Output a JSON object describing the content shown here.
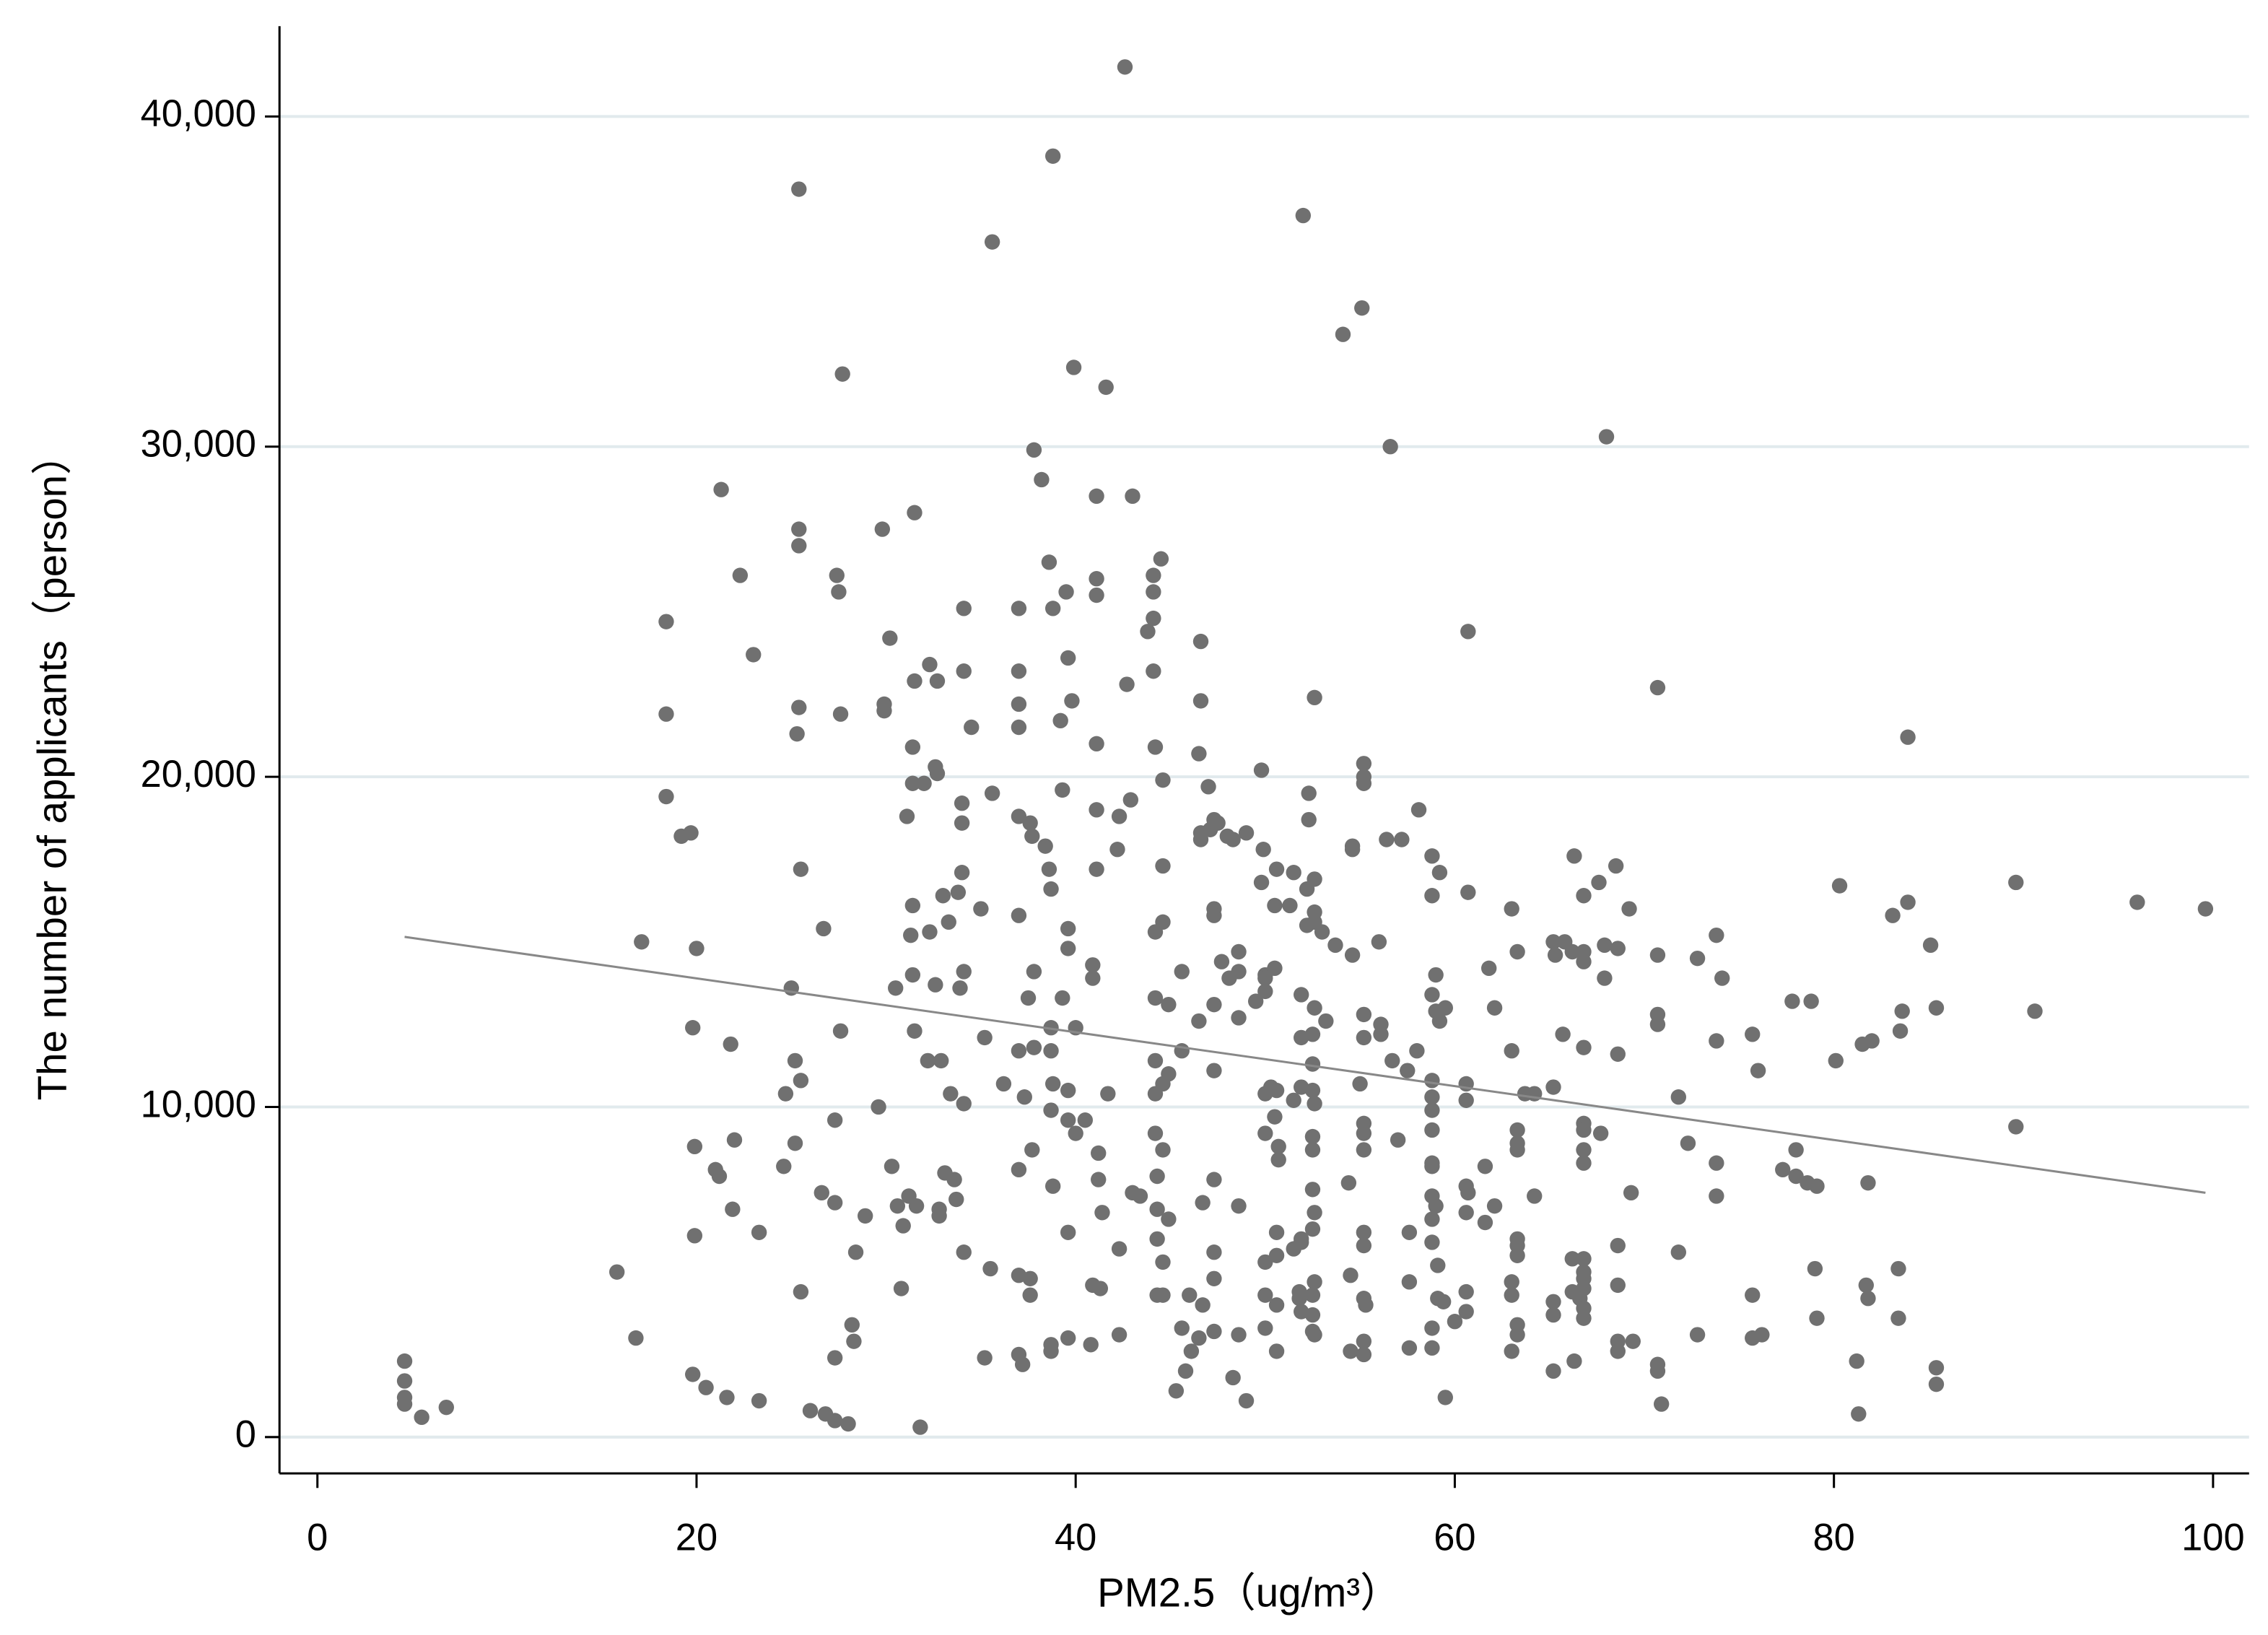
{
  "chart_data": {
    "type": "scatter",
    "x_label": "PM2.5（ug/m³）",
    "y_label": "The number of applicants（person）",
    "xlim": [
      -2.0,
      101.9
    ],
    "ylim": [
      -1100,
      42735
    ],
    "xticks": [
      0,
      20,
      40,
      60,
      80,
      100
    ],
    "yticks": [
      0,
      {
        "value": 10000,
        "label": "10,000"
      },
      {
        "value": 20000,
        "label": "20,000"
      },
      {
        "value": 30000,
        "label": "30,000"
      },
      {
        "value": 40000,
        "label": "40,000"
      }
    ],
    "grid": true,
    "color": "#707070",
    "x": [
      4.6,
      4.6,
      4.6,
      4.6,
      5.5,
      6.8,
      15.8,
      16.8,
      17.1,
      18.4,
      18.4,
      18.4,
      19.2,
      19.7,
      19.8,
      20,
      19.9,
      19.9,
      19.8,
      20.5,
      21,
      21.2,
      21.3,
      21.6,
      21.8,
      21.9,
      22,
      22.3,
      23,
      23.3,
      23.3,
      24.6,
      24.7,
      25,
      25.2,
      25.2,
      25.3,
      25.4,
      25.4,
      25.4,
      25.4,
      25.5,
      25.5,
      25.5,
      26,
      26.6,
      26.7,
      26.8,
      27.3,
      27.3,
      27.3,
      27.3,
      27.4,
      27.5,
      27.6,
      27.6,
      27.7,
      28,
      28.2,
      28.3,
      28.4,
      28.9,
      29.6,
      29.8,
      29.9,
      29.9,
      30.2,
      30.3,
      30.5,
      30.6,
      30.8,
      30.9,
      31.1,
      31.2,
      31.3,
      31.5,
      31.4,
      31.4,
      31.4,
      31.4,
      31.5,
      31.5,
      31.6,
      31.8,
      32,
      32.2,
      32.3,
      32.3,
      32.6,
      32.6,
      32.7,
      32.7,
      32.8,
      32.8,
      32.9,
      33,
      33.1,
      33.3,
      33.4,
      33.6,
      33.7,
      33.8,
      33.9,
      34,
      34.1,
      34.1,
      34,
      34,
      34.1,
      34.1,
      34.1,
      34.5,
      35,
      35.2,
      35.2,
      35.5,
      35.6,
      35.6,
      36.2,
      37,
      37,
      37,
      37,
      37,
      37,
      37,
      37,
      37,
      37,
      37.2,
      37.3,
      37.5,
      37.6,
      37.7,
      37.8,
      37.8,
      37.8,
      37.7,
      37.6,
      37.6,
      38.2,
      38.4,
      38.6,
      38.6,
      38.7,
      38.7,
      38.7,
      38.7,
      38.8,
      38.8,
      38.8,
      38.8,
      38.7,
      38.7,
      39.2,
      39.3,
      39.3,
      39.5,
      39.6,
      39.6,
      39.6,
      39.6,
      39.6,
      39.6,
      39.6,
      39.9,
      39.8,
      40,
      40,
      40.5,
      40.8,
      40.9,
      40.9,
      40.9,
      41.1,
      41.1,
      41.1,
      41.1,
      41.1,
      41.1,
      41.2,
      41.2,
      41.3,
      41.4,
      41.6,
      41.7,
      42.2,
      42.3,
      42.3,
      42.3,
      42.6,
      42.7,
      42.9,
      43,
      43,
      43.4,
      43.8,
      44.1,
      44.1,
      44.1,
      44.1,
      44.2,
      44.2,
      44.2,
      44.2,
      44.2,
      44.2,
      44.3,
      44.3,
      44.3,
      44.3,
      44.5,
      44.6,
      44.6,
      44.6,
      44.6,
      44.6,
      44.6,
      44.6,
      44.9,
      44.9,
      44.9,
      45.3,
      45.6,
      45.6,
      45.6,
      45.8,
      46,
      46.1,
      46.5,
      46.5,
      46.5,
      46.6,
      46.6,
      46.6,
      46.6,
      46.7,
      46.7,
      47,
      47.1,
      47.3,
      47.3,
      47.3,
      47.3,
      47.3,
      47.3,
      47.3,
      47.3,
      47.3,
      47.5,
      47.7,
      48,
      48.1,
      48.3,
      48.6,
      48.6,
      48.6,
      48.6,
      48.6,
      48.3,
      49,
      49,
      49.5,
      49.8,
      49.8,
      49.9,
      50,
      50,
      50,
      50,
      50,
      50,
      50,
      50,
      50.3,
      50.5,
      50.5,
      50.5,
      50.6,
      50.6,
      50.7,
      50.7,
      50.6,
      50.6,
      50.6,
      50.6,
      51.3,
      51.5,
      51.5,
      51.5,
      51.8,
      51.8,
      51.9,
      51.9,
      51.9,
      51.9,
      51.9,
      51.9,
      52,
      52.2,
      52.2,
      52.3,
      52.3,
      52.5,
      52.5,
      52.5,
      52.5,
      52.5,
      52.5,
      52.5,
      52.5,
      52.5,
      52.5,
      52.6,
      52.6,
      52.6,
      52.6,
      52.6,
      52.6,
      52.6,
      52.6,
      52.6,
      53,
      53.2,
      53.7,
      54.1,
      54.4,
      54.5,
      54.5,
      54.6,
      54.6,
      54.6,
      55,
      55.1,
      55.2,
      55.2,
      55.2,
      55.2,
      55.2,
      55.2,
      55.2,
      55.2,
      55.2,
      55.2,
      55.2,
      55.2,
      55.2,
      55.3,
      56,
      56.1,
      56.1,
      56.4,
      56.6,
      56.7,
      57,
      57.2,
      57.5,
      57.6,
      57.6,
      57.6,
      58,
      58.1,
      58.8,
      58.8,
      58.8,
      58.8,
      58.8,
      58.8,
      58.8,
      58.8,
      58.8,
      58.8,
      58.8,
      58.8,
      58.8,
      58.8,
      59,
      59,
      59,
      59.1,
      59.1,
      59.2,
      59.2,
      59.4,
      59.5,
      59.5,
      60,
      60.6,
      60.6,
      60.6,
      60.6,
      60.6,
      60.6,
      60.7,
      60.7,
      60.7,
      61.6,
      61.6,
      61.8,
      62.1,
      62.1,
      63,
      63,
      63,
      63,
      63,
      63.3,
      63.3,
      63.3,
      63.3,
      63.3,
      63.3,
      63.3,
      63.3,
      63.3,
      63.7,
      64.2,
      64.2,
      65.2,
      65.2,
      65.2,
      65.2,
      65.2,
      65.3,
      65.7,
      65.8,
      66.2,
      66.2,
      66.2,
      66.3,
      66.3,
      66.6,
      66.8,
      66.8,
      66.8,
      66.8,
      66.8,
      66.8,
      66.8,
      66.8,
      66.8,
      66.8,
      66.8,
      66.8,
      66.8,
      66.8,
      67.6,
      67.7,
      67.9,
      67.9,
      68,
      68.5,
      68.6,
      68.6,
      68.6,
      68.6,
      68.6,
      68.6,
      69.2,
      69.3,
      69.4,
      70.7,
      70.7,
      70.7,
      70.7,
      70.7,
      70.7,
      70.9,
      71.8,
      71.8,
      72.3,
      72.8,
      72.8,
      73.8,
      73.8,
      73.8,
      73.8,
      74.1,
      75.7,
      75.7,
      75.7,
      76,
      76.2,
      77.3,
      77.8,
      78,
      78,
      78.6,
      78.8,
      79,
      79.1,
      79.1,
      80.1,
      80.3,
      81.2,
      81.3,
      81.5,
      81.7,
      81.8,
      81.8,
      82,
      83.1,
      83.4,
      83.4,
      83.5,
      83.6,
      83.9,
      83.9,
      85.1,
      85.4,
      85.4,
      85.4,
      89.6,
      89.6,
      90.6,
      96,
      99.6
    ],
    "values": [
      2300,
      1700,
      1200,
      1000,
      600,
      900,
      5000,
      3000,
      15000,
      24700,
      21900,
      19400,
      18200,
      18300,
      12400,
      14800,
      8800,
      6100,
      1900,
      1500,
      8100,
      7900,
      28700,
      1200,
      11900,
      6900,
      9000,
      26100,
      23700,
      6200,
      1100,
      8200,
      10400,
      13600,
      8900,
      11400,
      21300,
      22100,
      27500,
      27000,
      37800,
      17200,
      10800,
      4400,
      800,
      7400,
      15400,
      700,
      500,
      2400,
      9600,
      7100,
      26100,
      25600,
      21900,
      12300,
      32200,
      400,
      3400,
      2900,
      5600,
      6700,
      10000,
      27500,
      22200,
      22000,
      24200,
      8200,
      13600,
      7000,
      4500,
      6400,
      18800,
      7300,
      15200,
      28000,
      20900,
      19800,
      16100,
      14000,
      12300,
      22900,
      7000,
      300,
      19800,
      11400,
      15300,
      23400,
      20300,
      13700,
      22900,
      20100,
      6900,
      6700,
      11400,
      16400,
      8000,
      15600,
      10400,
      7800,
      7200,
      16500,
      13600,
      17100,
      23200,
      25100,
      19200,
      18600,
      14100,
      10100,
      5600,
      21500,
      16000,
      12100,
      2400,
      5100,
      19500,
      36200,
      10700,
      25100,
      23200,
      22200,
      21500,
      18800,
      15800,
      11700,
      8100,
      4900,
      2500,
      2200,
      10300,
      13300,
      18600,
      18200,
      29900,
      14100,
      11800,
      8700,
      4800,
      4300,
      29000,
      17900,
      26500,
      17200,
      16600,
      12400,
      11700,
      9900,
      38800,
      25100,
      10700,
      7600,
      2800,
      2600,
      21700,
      19600,
      13300,
      25600,
      23600,
      15400,
      14800,
      10500,
      9600,
      6200,
      3000,
      32400,
      22300,
      12400,
      9200,
      9600,
      2800,
      14300,
      13900,
      4600,
      28500,
      26000,
      25500,
      21000,
      19000,
      17200,
      8600,
      7800,
      4500,
      6800,
      31800,
      10400,
      17800,
      18800,
      5700,
      3100,
      41500,
      22800,
      19300,
      28500,
      7400,
      7300,
      24400,
      26100,
      25600,
      24800,
      23200,
      20900,
      15300,
      13300,
      11400,
      10400,
      9200,
      7900,
      6900,
      6000,
      4300,
      26600,
      15600,
      19900,
      17300,
      10700,
      8700,
      5300,
      4300,
      13100,
      11000,
      6600,
      1400,
      14100,
      11700,
      3300,
      2000,
      4300,
      2600,
      20700,
      12600,
      3000,
      24100,
      22300,
      18100,
      18300,
      7100,
      4000,
      19700,
      18400,
      18700,
      16000,
      15800,
      13100,
      11100,
      7800,
      5600,
      4800,
      3200,
      18600,
      14400,
      18200,
      13900,
      18100,
      14700,
      14100,
      12700,
      7000,
      3100,
      1800,
      18300,
      1100,
      13200,
      20200,
      16800,
      17800,
      14000,
      13500,
      13900,
      10400,
      9200,
      4300,
      3300,
      5300,
      10600,
      16100,
      14200,
      9700,
      17200,
      10500,
      8800,
      8400,
      6200,
      5500,
      4000,
      2600,
      16100,
      17100,
      10200,
      5700,
      4400,
      4200,
      13400,
      12100,
      10600,
      6000,
      5900,
      3800,
      37000,
      16600,
      15500,
      19500,
      18700,
      12200,
      11300,
      10500,
      9100,
      8700,
      7500,
      6300,
      4300,
      3700,
      3200,
      22400,
      16900,
      15900,
      15600,
      13000,
      10100,
      6800,
      4700,
      3100,
      15300,
      12600,
      14900,
      33400,
      7700,
      4900,
      2600,
      17900,
      17800,
      14600,
      10700,
      34200,
      20400,
      20000,
      19800,
      12800,
      12100,
      9500,
      9200,
      8700,
      6200,
      5800,
      4200,
      2900,
      2500,
      4000,
      15000,
      12500,
      12200,
      18100,
      30000,
      11400,
      9000,
      18100,
      11100,
      6200,
      4700,
      2700,
      11700,
      19000,
      17600,
      16400,
      13400,
      10800,
      10300,
      9900,
      9300,
      8300,
      8200,
      7300,
      6600,
      5900,
      3300,
      2700,
      14000,
      12900,
      7000,
      5200,
      4200,
      17100,
      12600,
      4100,
      13000,
      1200,
      3500,
      10700,
      10200,
      7600,
      6800,
      3800,
      4400,
      24400,
      16500,
      7400,
      6500,
      8200,
      14200,
      13000,
      7000,
      16000,
      11700,
      4700,
      4300,
      2600,
      14700,
      9300,
      8900,
      8700,
      6000,
      5800,
      5500,
      3400,
      3100,
      10400,
      10400,
      7300,
      15000,
      10600,
      4100,
      3700,
      2000,
      14600,
      12200,
      15000,
      14700,
      5400,
      4400,
      17600,
      2300,
      4200,
      14700,
      14400,
      11800,
      9500,
      9300,
      8700,
      8300,
      5400,
      5000,
      4800,
      4500,
      3900,
      3600,
      16400,
      16800,
      9200,
      14900,
      13900,
      30300,
      17300,
      14800,
      11600,
      5800,
      4600,
      2900,
      2600,
      16000,
      7400,
      2900,
      22700,
      14600,
      12800,
      12500,
      2200,
      2000,
      1000,
      10300,
      5600,
      8900,
      14500,
      3100,
      15200,
      12000,
      8300,
      7300,
      13900,
      12200,
      4300,
      3000,
      11100,
      3100,
      8100,
      13200,
      8700,
      7900,
      7700,
      13200,
      5100,
      3600,
      7600,
      11400,
      16700,
      2300,
      700,
      11900,
      4600,
      4200,
      7700,
      12000,
      15800,
      5100,
      3600,
      12300,
      12900,
      16200,
      21200,
      14900,
      13000,
      2100,
      1600,
      16800,
      9400,
      12900,
      16200,
      16000
    ],
    "fit_line": {
      "x": [
        4.6,
        99.6
      ],
      "values": [
        15150,
        7400
      ],
      "color": "#888888"
    }
  }
}
